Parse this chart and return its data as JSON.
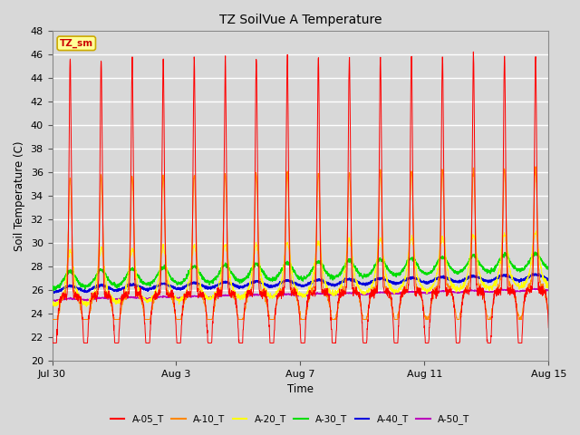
{
  "title": "TZ SoilVue A Temperature",
  "xlabel": "Time",
  "ylabel": "Soil Temperature (C)",
  "ylim": [
    20,
    48
  ],
  "yticks": [
    20,
    22,
    24,
    26,
    28,
    30,
    32,
    34,
    36,
    38,
    40,
    42,
    44,
    46,
    48
  ],
  "bg_color": "#d8d8d8",
  "plot_bg_color": "#d8d8d8",
  "legend_label": "TZ_sm",
  "legend_bg": "#ffff99",
  "legend_border": "#ccaa00",
  "series_colors": {
    "A-05_T": "#ff0000",
    "A-10_T": "#ff8800",
    "A-20_T": "#ffff00",
    "A-30_T": "#00dd00",
    "A-40_T": "#0000dd",
    "A-50_T": "#bb00bb"
  },
  "x_ticks_labels": [
    "Jul 30",
    "Aug 3",
    "Aug 7",
    "Aug 11",
    "Aug 15"
  ],
  "x_ticks_days": [
    0,
    4,
    8,
    12,
    16
  ],
  "num_days": 17,
  "points_per_day": 144
}
